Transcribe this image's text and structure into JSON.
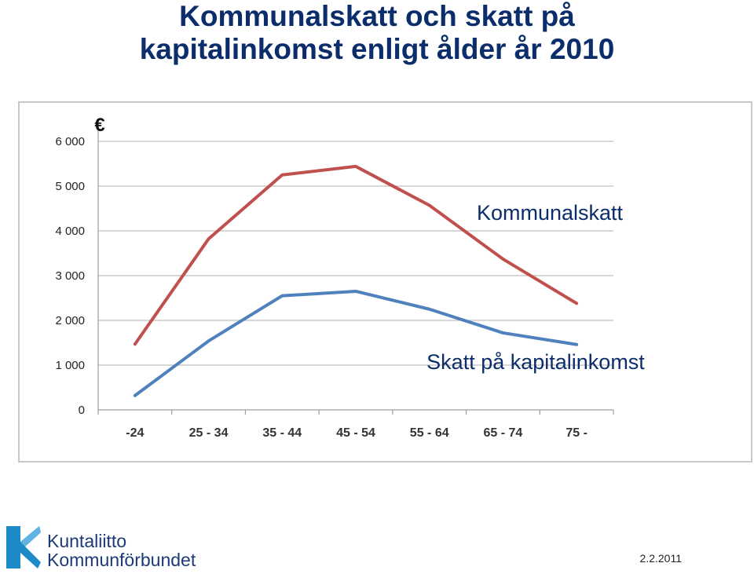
{
  "page": {
    "title_lines": [
      "Kommunalskatt och skatt på",
      "kapitalinkomst enligt ålder år 2010"
    ],
    "date": "2.2.2011",
    "logo": {
      "line1": "Kuntaliitto",
      "line2": "Kommunförbundet"
    }
  },
  "colors": {
    "title": "#0b2d6b",
    "kommunalskatt": "#c0504d",
    "kapital": "#4f81bd",
    "grid": "#bfbfbf"
  },
  "chart_data": {
    "type": "line",
    "unit_label": "€",
    "categories": [
      "-24",
      "25 - 34",
      "35 - 44",
      "45 - 54",
      "55 - 64",
      "65 - 74",
      "75 -"
    ],
    "yticks": [
      "0",
      "1 000",
      "2 000",
      "3 000",
      "4 000",
      "5 000",
      "6 000"
    ],
    "ylim": [
      0,
      6000
    ],
    "grid": true,
    "series": [
      {
        "name": "Kommunalskatt",
        "values": [
          1470,
          3820,
          5250,
          5440,
          4570,
          3370,
          2380
        ]
      },
      {
        "name": "Skatt på kapitalinkomst",
        "values": [
          320,
          1540,
          2550,
          2650,
          2250,
          1720,
          1460
        ]
      }
    ]
  }
}
